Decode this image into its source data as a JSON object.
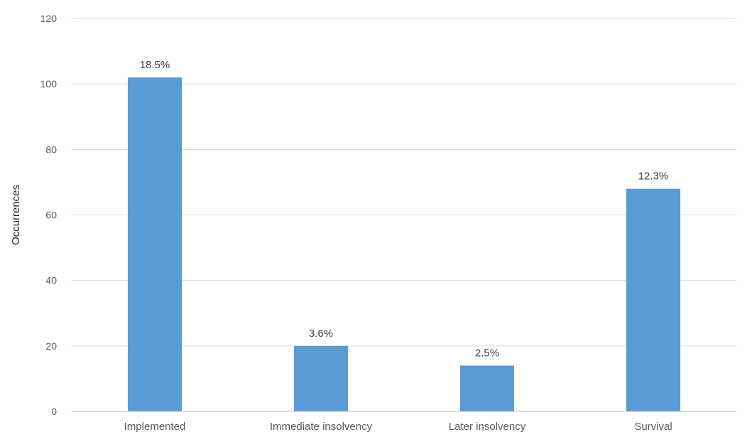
{
  "chart_data": {
    "type": "bar",
    "categories": [
      "Implemented",
      "Immediate insolvency",
      "Later insolvency",
      "Survival"
    ],
    "values": [
      102,
      20,
      14,
      68
    ],
    "data_labels": [
      "18.5%",
      "3.6%",
      "2.5%",
      "12.3%"
    ],
    "xlabel": "",
    "ylabel": "Occurrences",
    "ylim": [
      0,
      120
    ],
    "yticks": [
      0,
      20,
      40,
      60,
      80,
      100,
      120
    ],
    "grid": true,
    "bar_color": "#5b9bd5"
  }
}
